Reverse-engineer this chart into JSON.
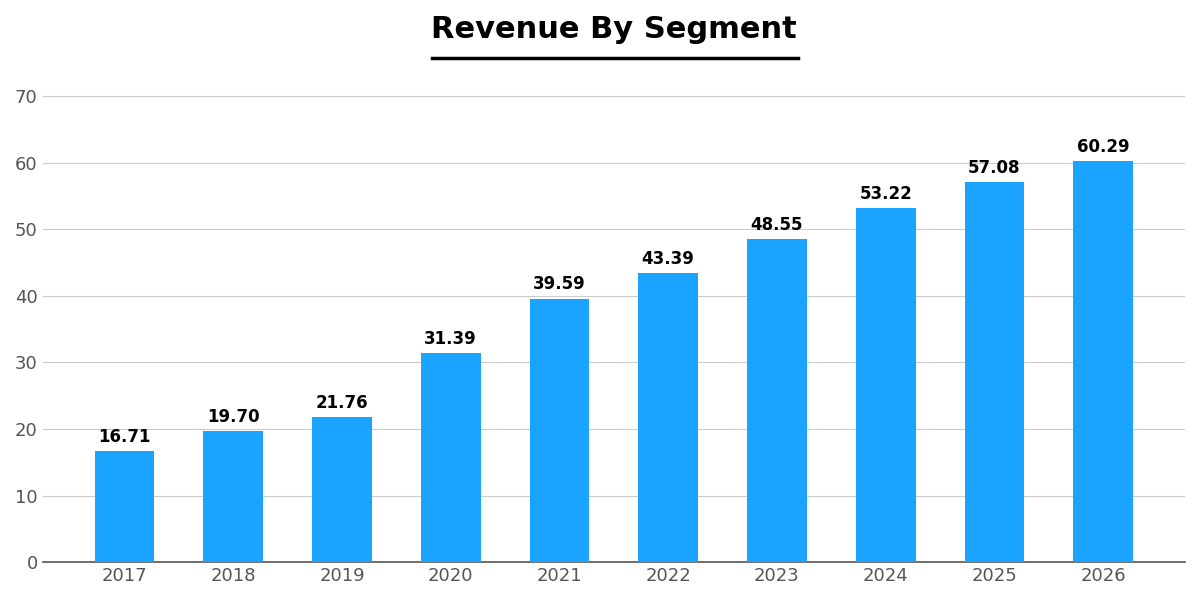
{
  "title": "Revenue By Segment",
  "categories": [
    "2017",
    "2018",
    "2019",
    "2020",
    "2021",
    "2022",
    "2023",
    "2024",
    "2025",
    "2026"
  ],
  "values": [
    16.71,
    19.7,
    21.76,
    31.39,
    39.59,
    43.39,
    48.55,
    53.22,
    57.08,
    60.29
  ],
  "bar_color": "#1aa3ff",
  "yticks": [
    0,
    10,
    20,
    30,
    40,
    50,
    60,
    70
  ],
  "ylim": [
    0,
    75
  ],
  "title_fontsize": 22,
  "tick_fontsize": 13,
  "annotation_fontsize": 12,
  "background_color": "#ffffff",
  "grid_color": "#cccccc",
  "axis_color": "#555555"
}
